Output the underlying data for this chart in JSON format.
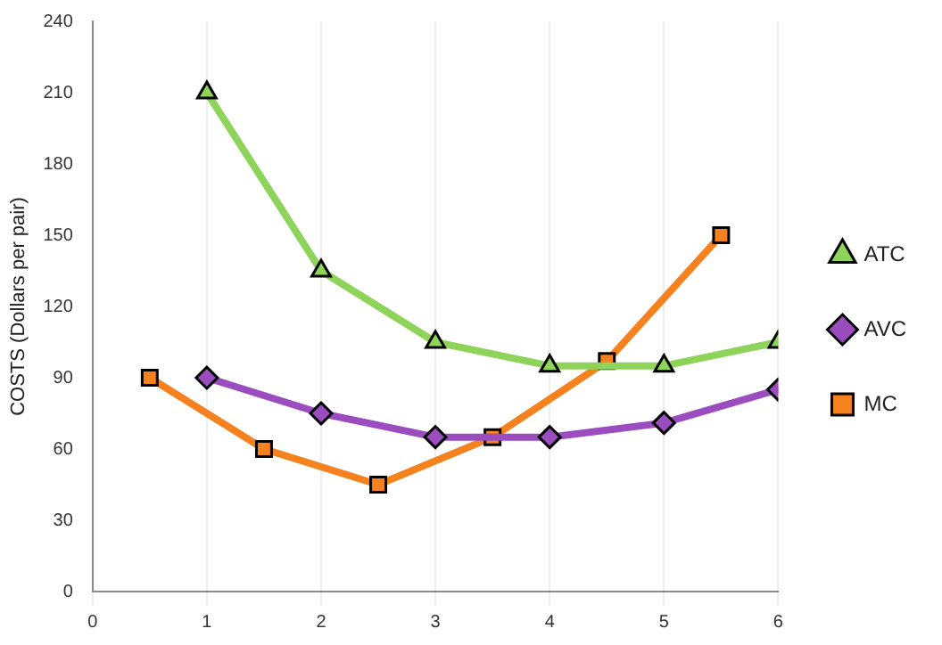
{
  "chart_data": {
    "type": "line",
    "ylabel": "COSTS (Dollars per pair)",
    "xlim": [
      0,
      6
    ],
    "xticks": [
      0,
      1,
      2,
      3,
      4,
      5,
      6
    ],
    "ylim": [
      0,
      240
    ],
    "yticks": [
      0,
      30,
      60,
      90,
      120,
      150,
      180,
      210,
      240
    ],
    "grid": "x",
    "legend": "right",
    "line_style": "solid",
    "series": [
      {
        "name": "ATC",
        "color": "#8ed45a",
        "marker": "triangle",
        "x": [
          1,
          2,
          3,
          4,
          5,
          6
        ],
        "values": [
          210,
          135,
          105,
          95,
          95,
          105
        ]
      },
      {
        "name": "AVC",
        "color": "#9b4dbf",
        "marker": "diamond",
        "x": [
          1,
          2,
          3,
          4,
          5,
          6
        ],
        "values": [
          90,
          75,
          65,
          65,
          71,
          85
        ]
      },
      {
        "name": "MC",
        "color": "#f5821f",
        "marker": "square",
        "x": [
          0.5,
          1.5,
          2.5,
          3.5,
          4.5,
          5.5
        ],
        "values": [
          90,
          60,
          45,
          65,
          97,
          150
        ]
      }
    ]
  }
}
